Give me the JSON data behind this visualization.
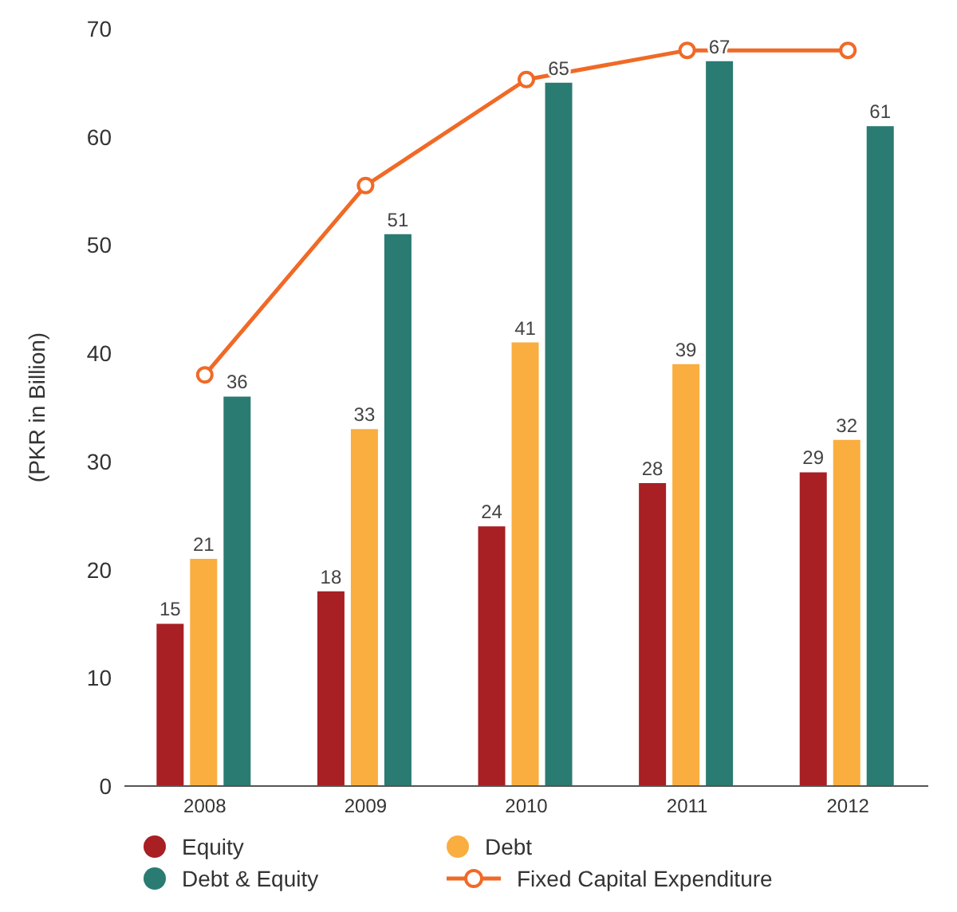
{
  "chart_data": {
    "type": "bar",
    "ylabel": "(PKR in Billion)",
    "categories": [
      "2008",
      "2009",
      "2010",
      "2011",
      "2012"
    ],
    "series": [
      {
        "name": "Equity",
        "color": "#a81f24",
        "values": [
          15,
          18,
          24,
          28,
          29
        ]
      },
      {
        "name": "Debt",
        "color": "#f9ae3f",
        "values": [
          21,
          33,
          41,
          39,
          32
        ]
      },
      {
        "name": "Debt & Equity",
        "color": "#2a7b72",
        "values": [
          36,
          51,
          65,
          67,
          61
        ]
      },
      {
        "name": "Fixed Capital Expenditure",
        "type": "line",
        "color": "#f06a26",
        "marker": "circle",
        "data_labels": false,
        "values": [
          38,
          55.5,
          65.3,
          68,
          68
        ]
      }
    ],
    "ylim": [
      0,
      70
    ],
    "yticks": [
      0,
      10,
      20,
      30,
      40,
      50,
      60,
      70
    ],
    "legend": "bottom",
    "data_labels": true
  }
}
